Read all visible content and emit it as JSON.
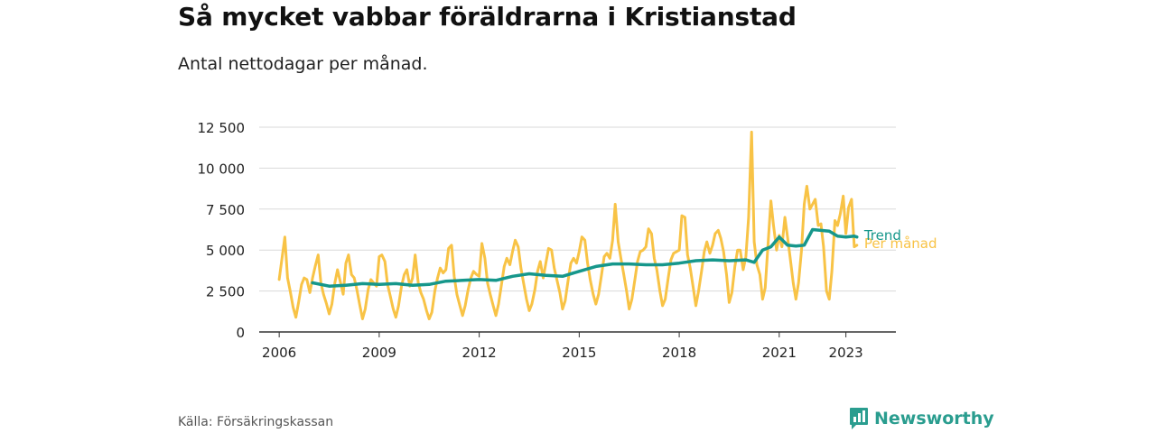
{
  "title": "Så mycket vabbar föräldrarna i Kristianstad",
  "subtitle": "Antal nettodagar per månad.",
  "source": "Källa: Försäkringskassan",
  "brand": {
    "name": "Newsworthy",
    "icon": "newsworthy-logo-icon"
  },
  "colors": {
    "monthly": "#f8c346",
    "trend": "#16978b",
    "grid": "#d9d9d9",
    "axis": "#333333"
  },
  "chart_data": {
    "type": "line",
    "title": "Så mycket vabbar föräldrarna i Kristianstad",
    "subtitle": "Antal nettodagar per månad.",
    "xlabel": "",
    "ylabel": "",
    "xlim": [
      2005.4,
      2024.5
    ],
    "ylim": [
      0,
      12500
    ],
    "x_ticks": [
      2006,
      2009,
      2012,
      2015,
      2018,
      2021,
      2023
    ],
    "x_tick_labels": [
      "2006",
      "2009",
      "2012",
      "2015",
      "2018",
      "2021",
      "2023"
    ],
    "y_ticks": [
      0,
      2500,
      5000,
      7500,
      10000,
      12500
    ],
    "y_tick_labels": [
      "0",
      "2 500",
      "5 000",
      "7 500",
      "10 000",
      "12 500"
    ],
    "grid": "horizontal",
    "legend": "direct labels at line ends",
    "series": [
      {
        "name": "Per månad",
        "color": "#f8c346",
        "x": [
          2006.0,
          2006.17,
          2006.25,
          2006.33,
          2006.42,
          2006.5,
          2006.58,
          2006.67,
          2006.75,
          2006.83,
          2006.92,
          2007.0,
          2007.08,
          2007.17,
          2007.25,
          2007.33,
          2007.42,
          2007.5,
          2007.58,
          2007.67,
          2007.75,
          2007.83,
          2007.92,
          2008.0,
          2008.08,
          2008.17,
          2008.25,
          2008.33,
          2008.42,
          2008.5,
          2008.58,
          2008.67,
          2008.75,
          2008.83,
          2008.92,
          2009.0,
          2009.08,
          2009.17,
          2009.25,
          2009.33,
          2009.42,
          2009.5,
          2009.58,
          2009.67,
          2009.75,
          2009.83,
          2009.92,
          2010.0,
          2010.08,
          2010.17,
          2010.25,
          2010.33,
          2010.42,
          2010.5,
          2010.58,
          2010.67,
          2010.75,
          2010.83,
          2010.92,
          2011.0,
          2011.08,
          2011.17,
          2011.25,
          2011.33,
          2011.42,
          2011.5,
          2011.58,
          2011.67,
          2011.75,
          2011.83,
          2011.92,
          2012.0,
          2012.08,
          2012.17,
          2012.25,
          2012.33,
          2012.42,
          2012.5,
          2012.58,
          2012.67,
          2012.75,
          2012.83,
          2012.92,
          2013.0,
          2013.08,
          2013.17,
          2013.25,
          2013.33,
          2013.42,
          2013.5,
          2013.58,
          2013.67,
          2013.75,
          2013.83,
          2013.92,
          2014.0,
          2014.08,
          2014.17,
          2014.25,
          2014.33,
          2014.42,
          2014.5,
          2014.58,
          2014.67,
          2014.75,
          2014.83,
          2014.92,
          2015.0,
          2015.08,
          2015.17,
          2015.25,
          2015.33,
          2015.42,
          2015.5,
          2015.58,
          2015.67,
          2015.75,
          2015.83,
          2015.92,
          2016.0,
          2016.08,
          2016.17,
          2016.25,
          2016.33,
          2016.42,
          2016.5,
          2016.58,
          2016.67,
          2016.75,
          2016.83,
          2016.92,
          2017.0,
          2017.08,
          2017.17,
          2017.25,
          2017.33,
          2017.42,
          2017.5,
          2017.58,
          2017.67,
          2017.75,
          2017.83,
          2017.92,
          2018.0,
          2018.08,
          2018.17,
          2018.25,
          2018.33,
          2018.42,
          2018.5,
          2018.58,
          2018.67,
          2018.75,
          2018.83,
          2018.92,
          2019.0,
          2019.08,
          2019.17,
          2019.25,
          2019.33,
          2019.42,
          2019.5,
          2019.58,
          2019.67,
          2019.75,
          2019.83,
          2019.92,
          2020.0,
          2020.08,
          2020.17,
          2020.25,
          2020.33,
          2020.42,
          2020.5,
          2020.58,
          2020.67,
          2020.75,
          2020.83,
          2020.92,
          2021.0,
          2021.08,
          2021.17,
          2021.25,
          2021.33,
          2021.42,
          2021.5,
          2021.58,
          2021.67,
          2021.75,
          2021.83,
          2021.92,
          2022.0,
          2022.08,
          2022.17,
          2022.25,
          2022.33,
          2022.42,
          2022.5,
          2022.58,
          2022.67,
          2022.75,
          2022.83,
          2022.92,
          2023.0,
          2023.08,
          2023.17,
          2023.25,
          2023.33
        ],
        "values": [
          3200,
          5800,
          3300,
          2500,
          1500,
          900,
          1800,
          2900,
          3300,
          3200,
          2400,
          3300,
          4000,
          4700,
          3000,
          2300,
          1700,
          1100,
          1700,
          3000,
          3800,
          3100,
          2300,
          4200,
          4700,
          3500,
          3300,
          2600,
          1600,
          800,
          1400,
          2600,
          3200,
          3000,
          2800,
          4600,
          4700,
          4300,
          2900,
          2200,
          1400,
          900,
          1600,
          2800,
          3500,
          3800,
          2800,
          3300,
          4700,
          3000,
          2400,
          2000,
          1300,
          800,
          1200,
          2500,
          3300,
          3900,
          3600,
          3800,
          5100,
          5300,
          3400,
          2300,
          1600,
          1000,
          1600,
          2600,
          3300,
          3700,
          3500,
          3400,
          5400,
          4500,
          3000,
          2300,
          1600,
          1000,
          1700,
          2900,
          4000,
          4500,
          4100,
          4900,
          5600,
          5200,
          3900,
          3000,
          2000,
          1300,
          1700,
          2600,
          3700,
          4300,
          3300,
          4200,
          5100,
          5000,
          3900,
          3200,
          2400,
          1400,
          1900,
          3200,
          4200,
          4500,
          4200,
          4900,
          5800,
          5600,
          4200,
          3200,
          2300,
          1700,
          2300,
          3500,
          4600,
          4800,
          4500,
          5600,
          7800,
          5500,
          4500,
          3600,
          2500,
          1400,
          2000,
          3200,
          4300,
          4900,
          5000,
          5200,
          6300,
          6000,
          4500,
          3800,
          2500,
          1600,
          2000,
          3300,
          4400,
          4800,
          4900,
          5000,
          7100,
          7000,
          4700,
          3900,
          2700,
          1600,
          2500,
          3700,
          4900,
          5500,
          4800,
          5300,
          6000,
          6200,
          5700,
          4900,
          3500,
          1800,
          2400,
          4000,
          5000,
          5000,
          3800,
          4600,
          7000,
          12200,
          5500,
          4100,
          3500,
          2000,
          2700,
          5500,
          8000,
          6500,
          5000,
          5900,
          5200,
          7000,
          5800,
          4500,
          3000,
          2000,
          3000,
          5000,
          7800,
          8900,
          7500,
          7800,
          8100,
          6500,
          6600,
          5200,
          2500,
          2000,
          3700,
          6800,
          6500,
          7200,
          8300,
          6000,
          7600,
          8100,
          5200,
          5300
        ]
      },
      {
        "name": "Trend",
        "color": "#16978b",
        "x": [
          2007.0,
          2007.5,
          2008.0,
          2008.5,
          2009.0,
          2009.5,
          2010.0,
          2010.5,
          2011.0,
          2011.5,
          2012.0,
          2012.5,
          2013.0,
          2013.5,
          2014.0,
          2014.5,
          2015.0,
          2015.5,
          2016.0,
          2016.5,
          2017.0,
          2017.5,
          2018.0,
          2018.5,
          2019.0,
          2019.5,
          2020.0,
          2020.25,
          2020.5,
          2020.75,
          2021.0,
          2021.25,
          2021.5,
          2021.75,
          2022.0,
          2022.25,
          2022.5,
          2022.75,
          2023.0,
          2023.25,
          2023.33
        ],
        "values": [
          3000,
          2800,
          2850,
          2950,
          2900,
          2950,
          2850,
          2900,
          3100,
          3150,
          3200,
          3150,
          3400,
          3550,
          3450,
          3400,
          3700,
          4000,
          4150,
          4150,
          4100,
          4100,
          4200,
          4350,
          4400,
          4350,
          4400,
          4250,
          5000,
          5200,
          5800,
          5300,
          5250,
          5300,
          6250,
          6200,
          6150,
          5850,
          5800,
          5850,
          5800
        ]
      }
    ]
  }
}
